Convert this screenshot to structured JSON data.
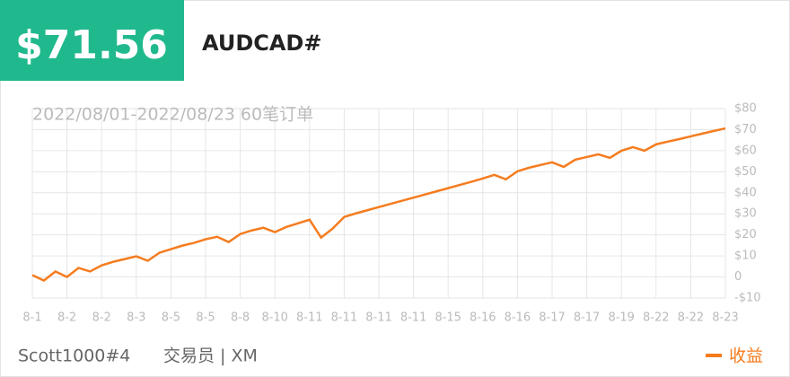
{
  "header": {
    "amount": "$71.56",
    "symbol": "AUDCAD#"
  },
  "chart_data": {
    "type": "line",
    "subtitle": "2022/08/01-2022/08/23 60笔订单",
    "categories": [
      "8-1",
      null,
      null,
      "8-2",
      null,
      null,
      "8-2",
      null,
      null,
      "8-3",
      null,
      null,
      "8-5",
      null,
      null,
      "8-5",
      null,
      null,
      "8-8",
      null,
      null,
      "8-10",
      null,
      null,
      "8-11",
      null,
      null,
      "8-11",
      null,
      null,
      "8-11",
      null,
      null,
      "8-11",
      null,
      null,
      "8-15",
      null,
      null,
      "8-16",
      null,
      null,
      "8-16",
      null,
      null,
      "8-17",
      null,
      null,
      "8-17",
      null,
      null,
      "8-19",
      null,
      null,
      "8-22",
      null,
      null,
      "8-22",
      null,
      null,
      "8-23"
    ],
    "series": [
      {
        "name": "收益",
        "color": "#f57c1f",
        "values": [
          0.9,
          -1.7,
          2.6,
          0,
          4.3,
          2.6,
          5.5,
          7.2,
          8.5,
          9.8,
          7.7,
          11.5,
          13.2,
          14.9,
          16.2,
          17.9,
          19.1,
          16.6,
          20.4,
          22.1,
          23.4,
          21.3,
          23.8,
          25.5,
          27.2,
          18.7,
          23,
          28.5,
          30.2,
          31.7,
          33.2,
          34.7,
          36.2,
          37.7,
          39.2,
          40.7,
          42.2,
          43.7,
          45.2,
          46.8,
          48.5,
          46.4,
          50.2,
          51.9,
          53.2,
          54.5,
          52.3,
          55.7,
          57,
          58.3,
          56.6,
          60,
          61.7,
          60,
          63,
          64.3,
          65.5,
          66.8,
          68.1,
          69.4,
          70.6
        ]
      }
    ],
    "ylim": [
      -10,
      80
    ],
    "yticks": [
      {
        "value": -10,
        "label": "-$10"
      },
      0,
      {
        "value": 10,
        "label": "$10"
      },
      {
        "value": 20,
        "label": "$20"
      },
      {
        "value": 30,
        "label": "$30"
      },
      {
        "value": 40,
        "label": "$40"
      },
      {
        "value": 50,
        "label": "$50"
      },
      {
        "value": 60,
        "label": "$60"
      },
      {
        "value": 70,
        "label": "$70"
      },
      {
        "value": 80,
        "label": "$80"
      }
    ],
    "grid": true,
    "legend": "bottom-right"
  },
  "footer": {
    "trader": "Scott1000#4",
    "role": "交易员 | XM"
  }
}
